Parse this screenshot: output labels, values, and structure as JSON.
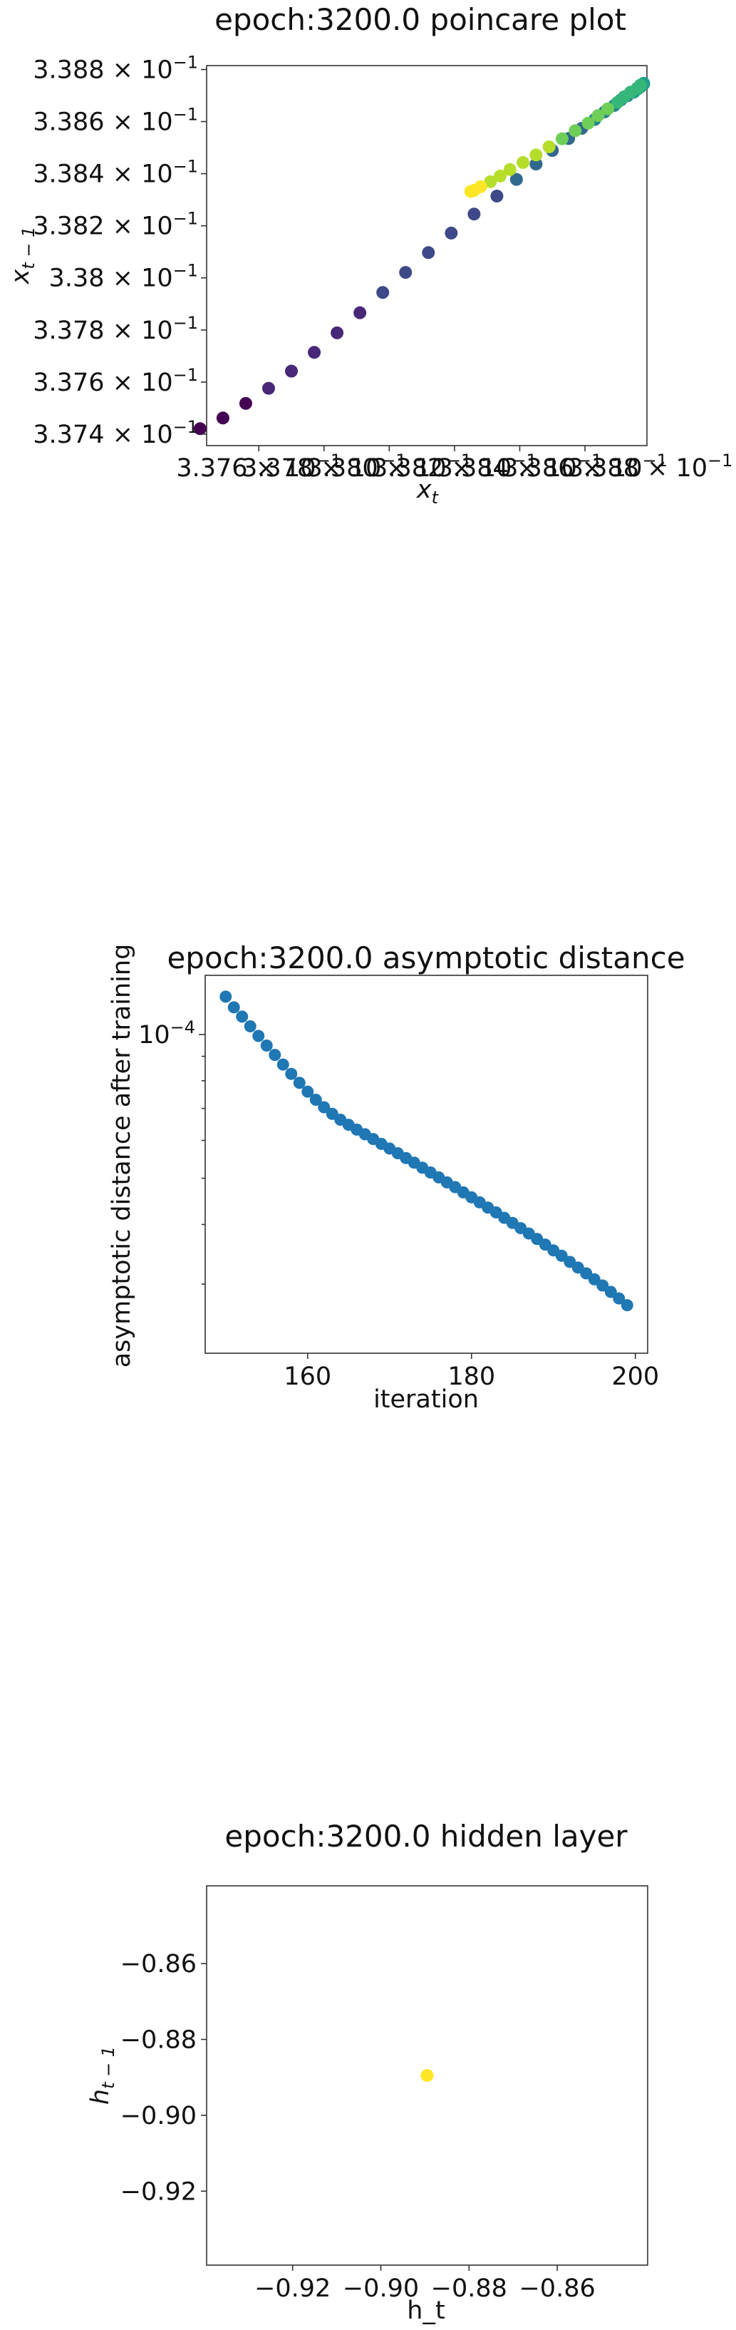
{
  "chart_data": [
    {
      "type": "scatter",
      "title": "epoch:3200.0 poincare plot",
      "xlabel": "x_t",
      "ylabel": "x_{t−1}",
      "xticks": [
        "3.376",
        "3.378",
        "3.380",
        "3.382",
        "3.384",
        "3.386",
        "3.388"
      ],
      "xtick_label_parts": [
        [
          "3.376 × ",
          "10",
          "−1"
        ],
        [
          "3.378 × ",
          "10",
          "−1"
        ],
        [
          "3.380 × ",
          "10",
          "−1"
        ],
        [
          "3.382 × ",
          "10",
          "−1"
        ],
        [
          "3.384 × ",
          "10",
          "−1"
        ],
        [
          "3.386 × ",
          "10",
          "−1"
        ],
        [
          "3.388 × ",
          "10",
          "−1"
        ]
      ],
      "ytick_label_parts": [
        [
          "3.374 × ",
          "10",
          "−1"
        ],
        [
          "3.376 × ",
          "10",
          "−1"
        ],
        [
          "3.378 × ",
          "10",
          "−1"
        ],
        [
          "3.38 × ",
          "10",
          "−1"
        ],
        [
          "3.382 × ",
          "10",
          "−1"
        ],
        [
          "3.384 × ",
          "10",
          "−1"
        ],
        [
          "3.386 × ",
          "10",
          "−1"
        ],
        [
          "3.388 × ",
          "10",
          "−1"
        ]
      ],
      "xlim": [
        0.33744,
        0.33879
      ],
      "ylim": [
        0.337356,
        0.338815
      ],
      "yticks": [
        0.3374,
        0.3376,
        0.3378,
        0.338,
        0.3382,
        0.3384,
        0.3386,
        0.3388
      ],
      "scale": "log",
      "colormap": "viridis",
      "colors": [
        "#440154",
        "#482878",
        "#3e4989",
        "#31688e",
        "#26828e",
        "#1f9e89",
        "#35b779",
        "#6ece58",
        "#b5de2b",
        "#fde725"
      ],
      "points": [
        [
          0.33742,
          0.337421
        ],
        [
          0.33749,
          0.337462
        ],
        [
          0.33756,
          0.337518
        ],
        [
          0.33763,
          0.337576
        ],
        [
          0.3377,
          0.337642
        ],
        [
          0.33777,
          0.337714
        ],
        [
          0.33784,
          0.337789
        ],
        [
          0.33791,
          0.337866
        ],
        [
          0.33798,
          0.337944
        ],
        [
          0.33805,
          0.338021
        ],
        [
          0.33812,
          0.338097
        ],
        [
          0.33819,
          0.338172
        ],
        [
          0.33826,
          0.338245
        ],
        [
          0.33833,
          0.338314
        ],
        [
          0.33839,
          0.338378
        ],
        [
          0.33845,
          0.338437
        ],
        [
          0.3385,
          0.338489
        ],
        [
          0.33855,
          0.338535
        ],
        [
          0.33859,
          0.338574
        ],
        [
          0.33863,
          0.338608
        ],
        [
          0.33866,
          0.338637
        ],
        [
          0.33869,
          0.338662
        ],
        [
          0.33871,
          0.338683
        ],
        [
          0.33873,
          0.338699
        ],
        [
          0.33875,
          0.338713
        ],
        [
          0.33876,
          0.338724
        ],
        [
          0.33877,
          0.338733
        ],
        [
          0.33877,
          0.33874
        ],
        [
          0.33878,
          0.338744
        ],
        [
          0.33878,
          0.338747
        ],
        [
          0.33877,
          0.338739
        ],
        [
          0.33876,
          0.338728
        ],
        [
          0.33874,
          0.338713
        ],
        [
          0.33872,
          0.338695
        ],
        [
          0.3387,
          0.338674
        ],
        [
          0.33867,
          0.338649
        ],
        [
          0.33864,
          0.338623
        ],
        [
          0.33861,
          0.338594
        ],
        [
          0.33857,
          0.338565
        ],
        [
          0.33853,
          0.338534
        ],
        [
          0.33849,
          0.338503
        ],
        [
          0.33845,
          0.338472
        ],
        [
          0.33841,
          0.338443
        ],
        [
          0.33837,
          0.338416
        ],
        [
          0.33834,
          0.338391
        ],
        [
          0.33831,
          0.338369
        ],
        [
          0.33828,
          0.33835
        ],
        [
          0.33826,
          0.338336
        ],
        [
          0.33825,
          0.338332
        ]
      ]
    },
    {
      "type": "scatter",
      "title": "epoch:3200.0 asymptotic distance",
      "xlabel": "iteration",
      "ylabel": "asymptotic distance after training",
      "xlim": [
        147.5,
        201.5
      ],
      "ylim": [
        2.15e-05,
        0.000133
      ],
      "xticks": [
        160,
        180,
        200
      ],
      "xtick_labels": [
        "160",
        "180",
        "200"
      ],
      "yticks": [
        0.0001
      ],
      "ytick_label_parts": [
        [
          "",
          "10",
          "−4"
        ]
      ],
      "yminor": [
        3e-05,
        4e-05,
        5e-05,
        6e-05,
        7e-05,
        8e-05,
        9e-05
      ],
      "scale": "log",
      "color": "#1f77b4",
      "x": [
        150,
        151,
        152,
        153,
        154,
        155,
        156,
        157,
        158,
        159,
        160,
        161,
        162,
        163,
        164,
        165,
        166,
        167,
        168,
        169,
        170,
        171,
        172,
        173,
        174,
        175,
        176,
        177,
        178,
        179,
        180,
        181,
        182,
        183,
        184,
        185,
        186,
        187,
        188,
        189,
        190,
        191,
        192,
        193,
        194,
        195,
        196,
        197,
        198,
        199
      ],
      "y": [
        0.00012,
        0.000114,
        0.000109,
        0.000104,
        9.93e-05,
        9.48e-05,
        9.06e-05,
        8.65e-05,
        8.27e-05,
        7.92e-05,
        7.59e-05,
        7.3e-05,
        7.04e-05,
        6.82e-05,
        6.63e-05,
        6.47e-05,
        6.32e-05,
        6.18e-05,
        6.04e-05,
        5.9e-05,
        5.77e-05,
        5.64e-05,
        5.51e-05,
        5.39e-05,
        5.26e-05,
        5.14e-05,
        5.02e-05,
        4.9e-05,
        4.79e-05,
        4.67e-05,
        4.56e-05,
        4.45e-05,
        4.34e-05,
        4.24e-05,
        4.13e-05,
        4.03e-05,
        3.93e-05,
        3.83e-05,
        3.73e-05,
        3.63e-05,
        3.53e-05,
        3.44e-05,
        3.34e-05,
        3.25e-05,
        3.16e-05,
        3.07e-05,
        2.98e-05,
        2.89e-05,
        2.8e-05,
        2.71e-05
      ]
    },
    {
      "type": "scatter",
      "title": "epoch:3200.0 hidden layer",
      "xlabel": "h_t",
      "ylabel": "h_{t−1}",
      "xlim": [
        -0.9395,
        -0.8395
      ],
      "ylim": [
        -0.9395,
        -0.8395
      ],
      "xticks": [
        -0.92,
        -0.9,
        -0.88,
        -0.86
      ],
      "xtick_labels": [
        "−0.92",
        "−0.90",
        "−0.88",
        "−0.86"
      ],
      "yticks": [
        -0.92,
        -0.9,
        -0.88,
        -0.86
      ],
      "ytick_labels": [
        "−0.92",
        "−0.90",
        "−0.88",
        "−0.86"
      ],
      "color": "#fde725",
      "points": [
        [
          -0.8895,
          -0.8895
        ]
      ]
    }
  ]
}
